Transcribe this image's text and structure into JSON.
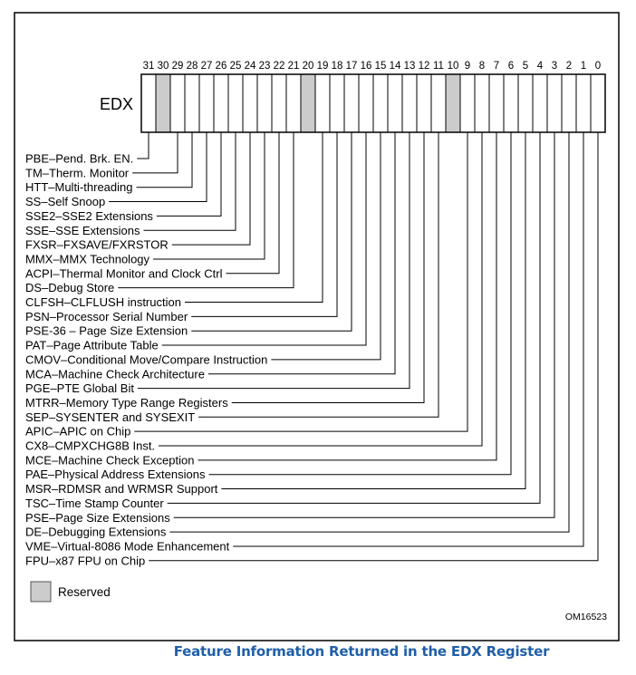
{
  "register": {
    "name": "EDX",
    "bits": 32,
    "reserved_bits": [
      30,
      20,
      10
    ]
  },
  "fields": [
    {
      "bit": 31,
      "label": "PBE–Pend. Brk. EN."
    },
    {
      "bit": 29,
      "label": "TM–Therm. Monitor"
    },
    {
      "bit": 28,
      "label": "HTT–Multi-threading"
    },
    {
      "bit": 27,
      "label": "SS–Self Snoop"
    },
    {
      "bit": 26,
      "label": "SSE2–SSE2 Extensions"
    },
    {
      "bit": 25,
      "label": "SSE–SSE Extensions"
    },
    {
      "bit": 24,
      "label": "FXSR–FXSAVE/FXRSTOR"
    },
    {
      "bit": 23,
      "label": "MMX–MMX Technology"
    },
    {
      "bit": 22,
      "label": "ACPI–Thermal Monitor and Clock Ctrl"
    },
    {
      "bit": 21,
      "label": "DS–Debug Store"
    },
    {
      "bit": 19,
      "label": "CLFSH–CLFLUSH instruction"
    },
    {
      "bit": 18,
      "label": "PSN–Processor Serial Number"
    },
    {
      "bit": 17,
      "label": "PSE-36 – Page Size Extension"
    },
    {
      "bit": 16,
      "label": "PAT–Page Attribute Table"
    },
    {
      "bit": 15,
      "label": "CMOV–Conditional Move/Compare Instruction"
    },
    {
      "bit": 14,
      "label": "MCA–Machine Check Architecture"
    },
    {
      "bit": 13,
      "label": "PGE–PTE Global Bit"
    },
    {
      "bit": 12,
      "label": "MTRR–Memory Type Range Registers"
    },
    {
      "bit": 11,
      "label": "SEP–SYSENTER and SYSEXIT"
    },
    {
      "bit": 9,
      "label": "APIC–APIC on Chip"
    },
    {
      "bit": 8,
      "label": "CX8–CMPXCHG8B Inst."
    },
    {
      "bit": 7,
      "label": "MCE–Machine Check Exception"
    },
    {
      "bit": 6,
      "label": "PAE–Physical Address Extensions"
    },
    {
      "bit": 5,
      "label": "MSR–RDMSR and WRMSR Support"
    },
    {
      "bit": 4,
      "label": "TSC–Time Stamp Counter"
    },
    {
      "bit": 3,
      "label": "PSE–Page Size Extensions"
    },
    {
      "bit": 2,
      "label": "DE–Debugging Extensions"
    },
    {
      "bit": 1,
      "label": "VME–Virtual-8086 Mode Enhancement"
    },
    {
      "bit": 0,
      "label": "FPU–x87 FPU on Chip"
    }
  ],
  "legend": {
    "reserved_label": "Reserved"
  },
  "figure_id": "OM16523",
  "caption": "Feature Information Returned in the EDX Register",
  "colors": {
    "reserved_fill": "#cccccc",
    "caption": "#1f5fa8"
  }
}
